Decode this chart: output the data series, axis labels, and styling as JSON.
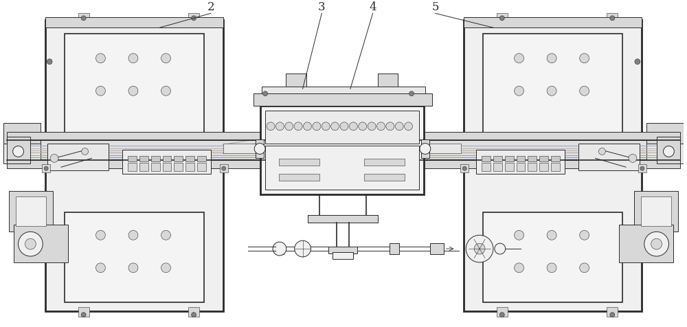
{
  "bg_color": "#ffffff",
  "lc": "#2a2a2a",
  "fc_light": "#f0f0f0",
  "fc_mid": "#d8d8d8",
  "fc_dark": "#b0b0b0",
  "fc_vdark": "#808080",
  "figsize": [
    10.0,
    4.76
  ],
  "dpi": 100,
  "label_fontsize": 12
}
